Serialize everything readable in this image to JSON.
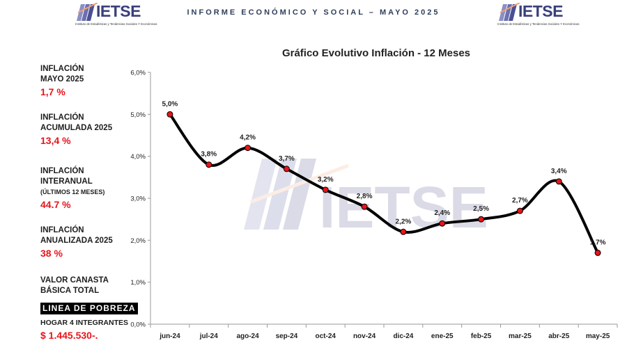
{
  "header": {
    "title": "INFORME ECONÓMICO Y SOCIAL – MAYO 2025",
    "logo_text": "IETSE",
    "logo_subtitle": "Instituto de Estadísticas y Tendencias Sociales Y Económicas",
    "watermark_text": "IETSE"
  },
  "side_panel": {
    "inflacion_mes": {
      "label_1": "INFLACIÓN",
      "label_2": "MAYO 2025",
      "value": "1,7 %"
    },
    "inflacion_acumulada": {
      "label_1": "INFLACIÓN",
      "label_2": "ACUMULADA 2025",
      "value": "13,4 %"
    },
    "inflacion_interanual": {
      "label_1": "INFLACIÓN",
      "label_2": "INTERANUAL",
      "label_3": "(ÚLTIMOS 12 MESES)",
      "value": "44.7 %"
    },
    "inflacion_anualizada": {
      "label_1": "INFLACIÓN",
      "label_2": "ANUALIZADA 2025",
      "value": "38 %"
    },
    "canasta": {
      "label_1": "VALOR CANASTA",
      "label_2": "BÁSICA TOTAL"
    },
    "pobreza": {
      "badge": "LINEA DE POBREZA",
      "label": "HOGAR 4 INTEGRANTES",
      "value": "$ 1.445.530-."
    }
  },
  "colors": {
    "accent_red": "#e8141b",
    "line": "#000000",
    "brand": "#3a3f7a",
    "marker": "#e8141b"
  },
  "chart_data": {
    "type": "line",
    "title": "Gráfico Evolutivo Inflación - 12 Meses",
    "categories": [
      "jun-24",
      "jul-24",
      "ago-24",
      "sep-24",
      "oct-24",
      "nov-24",
      "dic-24",
      "ene-25",
      "feb-25",
      "mar-25",
      "abr-25",
      "may-25"
    ],
    "series": [
      {
        "values": [
          5.0,
          3.8,
          4.2,
          3.7,
          3.2,
          2.8,
          2.2,
          2.4,
          2.5,
          2.7,
          3.4,
          1.7
        ],
        "labels": [
          "5,0%",
          "3,8%",
          "4,2%",
          "3,7%",
          "3,2%",
          "2,8%",
          "2,2%",
          "2,4%",
          "2,5%",
          "2,7%",
          "3,4%",
          "1,7%"
        ]
      }
    ],
    "ylim": [
      0,
      6
    ],
    "yticks": [
      "0,0%",
      "1,0%",
      "2,0%",
      "3,0%",
      "4,0%",
      "5,0%",
      "6,0%"
    ],
    "grid": false
  }
}
